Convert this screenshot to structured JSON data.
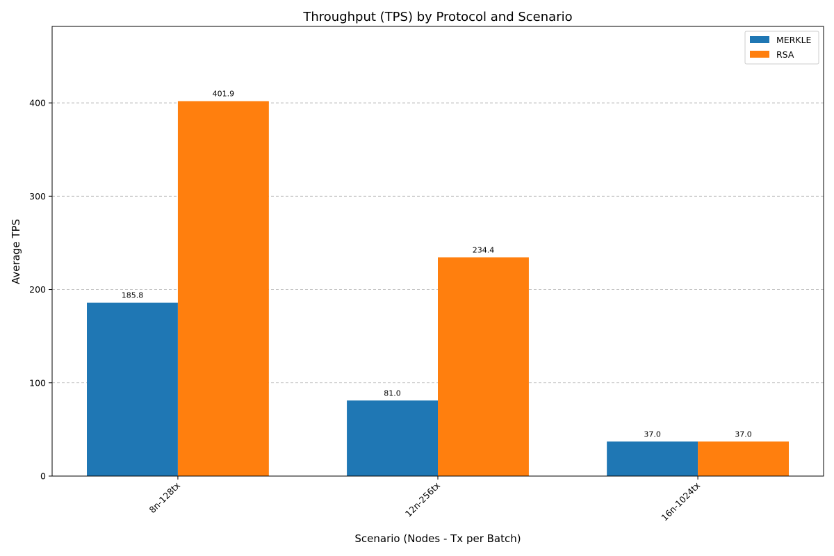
{
  "chart_data": {
    "type": "bar",
    "title": "Throughput (TPS) by Protocol and Scenario",
    "xlabel": "Scenario (Nodes - Tx per Batch)",
    "ylabel": "Average TPS",
    "categories": [
      "8n-128tx",
      "12n-256tx",
      "16n-1024tx"
    ],
    "series": [
      {
        "name": "MERKLE",
        "color": "#1f77b4",
        "values": [
          185.8,
          81.0,
          37.0
        ]
      },
      {
        "name": "RSA",
        "color": "#ff7f0e",
        "values": [
          401.9,
          234.4,
          37.0
        ]
      }
    ],
    "data_labels": [
      [
        "185.8",
        "81.0",
        "37.0"
      ],
      [
        "401.9",
        "234.4",
        "37.0"
      ]
    ],
    "ylim": [
      0,
      482
    ],
    "yticks": [
      0,
      100,
      200,
      300,
      400
    ],
    "grid": "y-dashed",
    "legend": "top-right",
    "xtick_rotation": 45
  }
}
